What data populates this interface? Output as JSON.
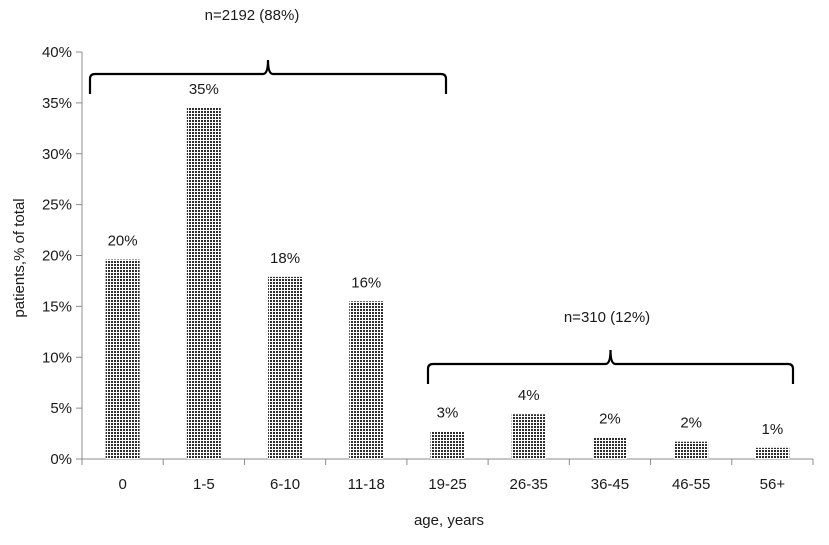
{
  "chart_data": {
    "type": "bar",
    "title": "",
    "xlabel": "age, years",
    "ylabel": "patients,% of total",
    "categories": [
      "0",
      "1-5",
      "6-10",
      "11-18",
      "19-25",
      "26-35",
      "36-45",
      "46-55",
      "56+"
    ],
    "values": [
      19.6,
      34.5,
      17.9,
      15.5,
      2.7,
      4.4,
      2.1,
      1.7,
      1.1
    ],
    "data_labels": [
      "20%",
      "35%",
      "18%",
      "16%",
      "3%",
      "4%",
      "2%",
      "2%",
      "1%"
    ],
    "ylim": [
      0,
      40
    ],
    "yticks": [
      0,
      5,
      10,
      15,
      20,
      25,
      30,
      35,
      40
    ],
    "ytick_labels": [
      "0%",
      "5%",
      "10%",
      "15%",
      "20%",
      "25%",
      "30%",
      "35%",
      "40%"
    ],
    "grid": false,
    "legend": "none",
    "bar_fill": "crosshatch",
    "bar_color": "#3a3a3a",
    "group_annotations": [
      {
        "label": "n=2192  (88%)",
        "from_category": "0",
        "to_category": "11-18"
      },
      {
        "label": "n=310 (12%)",
        "from_category": "19-25",
        "to_category": "56+"
      }
    ]
  }
}
